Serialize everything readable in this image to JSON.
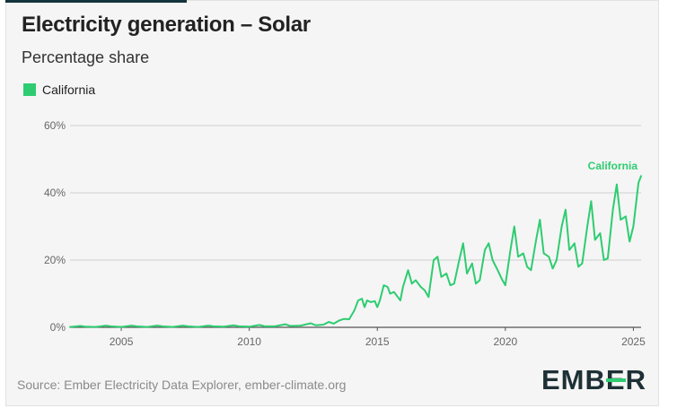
{
  "header": {
    "title": "Electricity generation – Solar",
    "subtitle": "Percentage share"
  },
  "legend": {
    "label": "California",
    "color": "#2ecc71"
  },
  "footer": {
    "source": "Source: Ember Electricity Data Explorer, ember-climate.org",
    "logo_text": "EMBER",
    "logo_text_pre": "EMB",
    "logo_text_mid": "E",
    "logo_text_post": "R"
  },
  "chart_data": {
    "type": "line",
    "title": "Electricity generation – Solar",
    "subtitle": "Percentage share",
    "xlabel": "",
    "ylabel": "",
    "xlim": [
      2003.0,
      2025.3
    ],
    "ylim": [
      0,
      60
    ],
    "x_ticks": [
      2005,
      2010,
      2015,
      2020,
      2025
    ],
    "x_tick_labels": [
      "2005",
      "2010",
      "2015",
      "2020",
      "2025"
    ],
    "y_ticks": [
      0,
      20,
      40,
      60
    ],
    "y_tick_labels": [
      "0%",
      "20%",
      "40%",
      "60%"
    ],
    "grid": true,
    "series": [
      {
        "name": "California",
        "color": "#2ecc71",
        "end_label": "California",
        "x": [
          2003.0,
          2003.4,
          2003.6,
          2004.0,
          2004.4,
          2004.6,
          2005.0,
          2005.4,
          2005.6,
          2006.0,
          2006.4,
          2006.6,
          2007.0,
          2007.4,
          2007.6,
          2008.0,
          2008.4,
          2008.6,
          2009.0,
          2009.4,
          2009.6,
          2010.0,
          2010.4,
          2010.6,
          2011.0,
          2011.4,
          2011.6,
          2012.0,
          2012.4,
          2012.6,
          2012.9,
          2013.1,
          2013.3,
          2013.5,
          2013.7,
          2013.9,
          2014.1,
          2014.25,
          2014.4,
          2014.5,
          2014.6,
          2014.75,
          2014.9,
          2015.0,
          2015.1,
          2015.25,
          2015.4,
          2015.5,
          2015.65,
          2015.8,
          2015.9,
          2016.0,
          2016.2,
          2016.35,
          2016.5,
          2016.7,
          2016.85,
          2017.0,
          2017.2,
          2017.35,
          2017.5,
          2017.7,
          2017.85,
          2018.0,
          2018.2,
          2018.35,
          2018.5,
          2018.7,
          2018.85,
          2019.0,
          2019.2,
          2019.35,
          2019.5,
          2019.7,
          2019.85,
          2020.0,
          2020.2,
          2020.35,
          2020.5,
          2020.7,
          2020.85,
          2021.0,
          2021.2,
          2021.35,
          2021.5,
          2021.7,
          2021.85,
          2022.0,
          2022.2,
          2022.35,
          2022.5,
          2022.7,
          2022.85,
          2023.0,
          2023.2,
          2023.35,
          2023.5,
          2023.7,
          2023.85,
          2024.0,
          2024.2,
          2024.35,
          2024.5,
          2024.7,
          2024.85,
          2025.0,
          2025.2,
          2025.3
        ],
        "values": [
          0.1,
          0.4,
          0.2,
          0.1,
          0.5,
          0.3,
          0.1,
          0.5,
          0.3,
          0.1,
          0.5,
          0.3,
          0.1,
          0.5,
          0.3,
          0.1,
          0.5,
          0.3,
          0.2,
          0.6,
          0.3,
          0.2,
          0.7,
          0.3,
          0.3,
          0.9,
          0.4,
          0.5,
          1.2,
          0.6,
          0.8,
          1.6,
          1.1,
          2.0,
          2.5,
          2.4,
          5.0,
          8.0,
          8.5,
          6.0,
          8.0,
          7.5,
          7.8,
          6.0,
          8.0,
          12.5,
          12.0,
          10.0,
          10.5,
          9.0,
          8.0,
          12.0,
          17.0,
          13.0,
          14.0,
          12.0,
          11.0,
          9.0,
          20.0,
          21.0,
          15.0,
          16.0,
          12.5,
          13.0,
          20.0,
          25.0,
          16.0,
          19.0,
          13.0,
          14.0,
          23.0,
          25.0,
          20.0,
          17.0,
          14.5,
          12.5,
          23.0,
          30.0,
          21.0,
          22.0,
          18.0,
          17.0,
          26.0,
          32.0,
          22.0,
          21.0,
          17.5,
          20.0,
          30.0,
          35.0,
          23.0,
          25.0,
          18.0,
          19.0,
          30.0,
          37.5,
          26.0,
          28.0,
          20.0,
          20.5,
          35.0,
          42.5,
          32.0,
          33.0,
          25.5,
          30.0,
          43.0,
          45.0
        ]
      }
    ]
  }
}
